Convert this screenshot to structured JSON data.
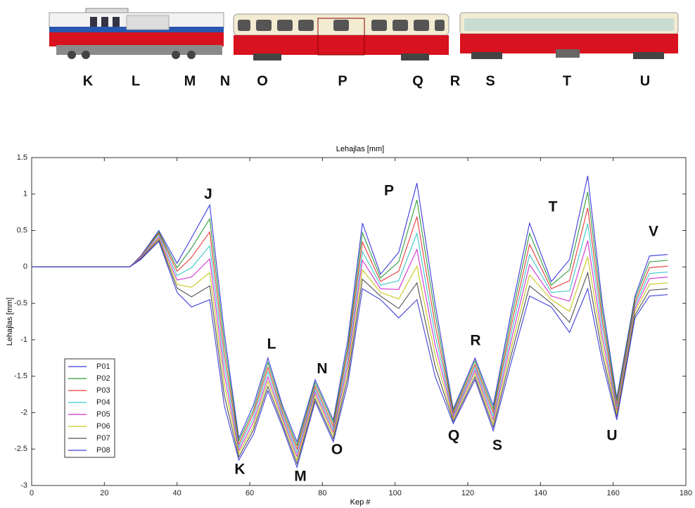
{
  "train_labels": [
    "K",
    "L",
    "M",
    "N",
    "O",
    "P",
    "Q",
    "R",
    "S",
    "T",
    "U"
  ],
  "chart_data": {
    "type": "line",
    "title": "Lehajlas [mm]",
    "x_label": "Kep #",
    "y_label": "Lehajlas [mm]",
    "xlim": [
      0,
      180
    ],
    "xticks": [
      0,
      20,
      40,
      60,
      80,
      100,
      120,
      140,
      160,
      180
    ],
    "ylim": [
      -3,
      1.5
    ],
    "yticks": [
      -3,
      -2.5,
      -2,
      -1.5,
      -1,
      -0.5,
      0,
      0.5,
      1,
      1.5
    ],
    "legend": "lower left",
    "annotations": [
      "J",
      "K",
      "L",
      "M",
      "N",
      "O",
      "P",
      "Q",
      "R",
      "S",
      "T",
      "U",
      "V"
    ],
    "x": [
      0,
      27,
      30,
      35,
      40,
      44,
      49,
      53,
      57,
      61,
      65,
      69,
      73,
      78,
      83,
      87,
      91,
      96,
      101,
      106,
      111,
      116,
      122,
      127,
      132,
      137,
      143,
      148,
      153,
      157,
      161,
      166,
      170,
      175
    ],
    "series": [
      {
        "name": "P01",
        "color": "#3a3ae0",
        "values": [
          0,
          0,
          0.15,
          0.5,
          0.05,
          0.4,
          0.85,
          -0.9,
          -2.35,
          -1.9,
          -1.25,
          -1.9,
          -2.4,
          -1.55,
          -2.1,
          -1.0,
          0.6,
          -0.1,
          0.2,
          1.15,
          -0.5,
          -1.95,
          -1.25,
          -1.9,
          -0.6,
          0.6,
          -0.2,
          0.1,
          1.25,
          -0.5,
          -1.8,
          -0.4,
          0.15,
          0.17
        ]
      },
      {
        "name": "P02",
        "color": "#2e9a3e",
        "values": [
          0,
          0,
          0.14,
          0.48,
          -0.01,
          0.26,
          0.66,
          -1.04,
          -2.39,
          -1.96,
          -1.31,
          -1.94,
          -2.45,
          -1.59,
          -2.14,
          -1.09,
          0.47,
          -0.15,
          0.07,
          0.92,
          -0.64,
          -1.98,
          -1.29,
          -1.95,
          -0.7,
          0.46,
          -0.25,
          -0.04,
          1.03,
          -0.61,
          -1.84,
          -0.44,
          0.07,
          0.09
        ]
      },
      {
        "name": "P03",
        "color": "#e83a3a",
        "values": [
          0,
          0,
          0.14,
          0.46,
          -0.06,
          0.13,
          0.48,
          -1.19,
          -2.44,
          -2.01,
          -1.38,
          -1.99,
          -2.5,
          -1.64,
          -2.19,
          -1.17,
          0.34,
          -0.2,
          -0.06,
          0.69,
          -0.79,
          -2.01,
          -1.34,
          -2.0,
          -0.8,
          0.31,
          -0.3,
          -0.19,
          0.81,
          -0.73,
          -1.89,
          -0.49,
          -0.01,
          0.01
        ]
      },
      {
        "name": "P04",
        "color": "#3cc8c8",
        "values": [
          0,
          0,
          0.13,
          0.44,
          -0.12,
          -0.01,
          0.29,
          -1.33,
          -2.48,
          -2.07,
          -1.44,
          -2.03,
          -2.55,
          -1.68,
          -2.23,
          -1.26,
          0.21,
          -0.25,
          -0.19,
          0.46,
          -0.93,
          -2.04,
          -1.38,
          -2.05,
          -0.9,
          0.17,
          -0.35,
          -0.33,
          0.59,
          -0.84,
          -1.93,
          -0.53,
          -0.09,
          -0.07
        ]
      },
      {
        "name": "P05",
        "color": "#d030d0",
        "values": [
          0,
          0,
          0.12,
          0.41,
          -0.18,
          -0.14,
          0.11,
          -1.47,
          -2.52,
          -2.13,
          -1.51,
          -2.07,
          -2.6,
          -1.72,
          -2.27,
          -1.34,
          0.09,
          -0.3,
          -0.31,
          0.24,
          -1.07,
          -2.06,
          -1.42,
          -2.1,
          -1.0,
          0.03,
          -0.4,
          -0.47,
          0.36,
          -0.96,
          -1.97,
          -0.57,
          -0.16,
          -0.14
        ]
      },
      {
        "name": "P06",
        "color": "#c8c820",
        "values": [
          0,
          0,
          0.11,
          0.39,
          -0.24,
          -0.28,
          -0.08,
          -1.61,
          -2.56,
          -2.19,
          -1.57,
          -2.11,
          -2.65,
          -1.76,
          -2.31,
          -1.43,
          -0.04,
          -0.35,
          -0.44,
          0.01,
          -1.21,
          -2.09,
          -1.46,
          -2.15,
          -1.1,
          -0.11,
          -0.45,
          -0.61,
          0.14,
          -1.07,
          -2.01,
          -0.61,
          -0.24,
          -0.22
        ]
      },
      {
        "name": "P07",
        "color": "#505050",
        "values": [
          0,
          0,
          0.11,
          0.37,
          -0.29,
          -0.41,
          -0.26,
          -1.76,
          -2.61,
          -2.24,
          -1.64,
          -2.16,
          -2.7,
          -1.81,
          -2.36,
          -1.51,
          -0.17,
          -0.4,
          -0.57,
          -0.22,
          -1.36,
          -2.12,
          -1.51,
          -2.2,
          -1.2,
          -0.26,
          -0.5,
          -0.76,
          -0.08,
          -1.19,
          -2.06,
          -0.66,
          -0.32,
          -0.3
        ]
      },
      {
        "name": "P08",
        "color": "#4040d8",
        "values": [
          0,
          0,
          0.1,
          0.35,
          -0.35,
          -0.55,
          -0.45,
          -1.9,
          -2.65,
          -2.3,
          -1.7,
          -2.2,
          -2.75,
          -1.85,
          -2.4,
          -1.6,
          -0.3,
          -0.45,
          -0.7,
          -0.45,
          -1.5,
          -2.15,
          -1.55,
          -2.25,
          -1.3,
          -0.4,
          -0.55,
          -0.9,
          -0.3,
          -1.3,
          -2.1,
          -0.7,
          -0.4,
          -0.38
        ]
      }
    ]
  }
}
